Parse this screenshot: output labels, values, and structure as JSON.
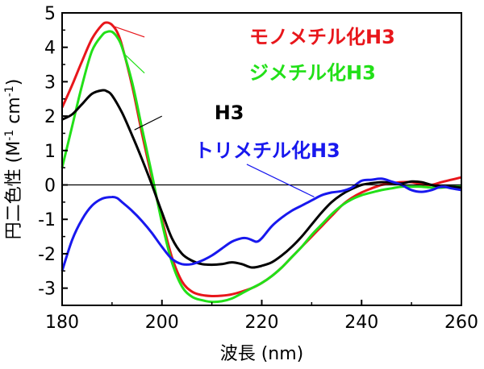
{
  "chart_data": {
    "type": "line",
    "xlabel": "波長 (nm)",
    "ylabel_main": "円二色性 (M",
    "ylabel_sup1": "-1",
    "ylabel_mid": " cm",
    "ylabel_sup2": "-1",
    "ylabel_end": ")",
    "xlim": [
      180,
      260
    ],
    "ylim": [
      -3.5,
      5
    ],
    "xticks": [
      180,
      200,
      220,
      240,
      260
    ],
    "yticks": [
      -3,
      -2,
      -1,
      0,
      1,
      2,
      3,
      4,
      5
    ],
    "zero_line": true,
    "grid": false,
    "series": [
      {
        "name": "モノメチル化H3",
        "color": "#e8161b",
        "x": [
          180,
          182,
          184,
          186,
          188,
          189,
          190,
          191,
          192,
          194,
          196,
          198,
          200,
          202,
          204,
          206,
          208,
          210,
          212,
          214,
          216,
          218,
          220,
          222,
          224,
          226,
          228,
          230,
          232,
          234,
          236,
          238,
          240,
          242,
          244,
          246,
          248,
          250,
          252,
          254,
          256,
          258,
          260
        ],
        "y": [
          2.25,
          2.9,
          3.6,
          4.25,
          4.65,
          4.72,
          4.65,
          4.45,
          4.05,
          2.9,
          1.5,
          0.2,
          -1.0,
          -2.1,
          -2.8,
          -3.1,
          -3.2,
          -3.23,
          -3.22,
          -3.18,
          -3.1,
          -3.0,
          -2.85,
          -2.65,
          -2.4,
          -2.1,
          -1.8,
          -1.5,
          -1.2,
          -0.9,
          -0.6,
          -0.38,
          -0.22,
          -0.1,
          0.0,
          0.05,
          0.08,
          0.08,
          0.02,
          0.0,
          0.08,
          0.15,
          0.22
        ]
      },
      {
        "name": "ジメチル化H3",
        "color": "#22e018",
        "x": [
          180,
          182,
          184,
          186,
          188,
          189,
          190,
          191,
          192,
          194,
          196,
          198,
          200,
          202,
          204,
          206,
          208,
          210,
          212,
          214,
          216,
          218,
          220,
          222,
          224,
          226,
          228,
          230,
          232,
          234,
          236,
          238,
          240,
          242,
          244,
          246,
          248,
          250,
          252,
          254,
          256,
          258,
          260
        ],
        "y": [
          0.5,
          1.7,
          2.9,
          3.9,
          4.35,
          4.45,
          4.45,
          4.3,
          4.0,
          3.0,
          1.65,
          0.3,
          -1.1,
          -2.25,
          -2.95,
          -3.25,
          -3.35,
          -3.4,
          -3.38,
          -3.3,
          -3.15,
          -3.0,
          -2.85,
          -2.65,
          -2.4,
          -2.1,
          -1.8,
          -1.45,
          -1.15,
          -0.85,
          -0.6,
          -0.42,
          -0.3,
          -0.22,
          -0.15,
          -0.1,
          -0.05,
          -0.05,
          -0.05,
          -0.08,
          -0.08,
          -0.05,
          -0.05
        ]
      },
      {
        "name": "H3",
        "color": "#000000",
        "x": [
          180,
          182,
          184,
          186,
          188,
          189,
          190,
          192,
          194,
          196,
          198,
          200,
          202,
          204,
          206,
          208,
          210,
          212,
          214,
          216,
          218,
          220,
          222,
          224,
          226,
          228,
          230,
          232,
          234,
          236,
          238,
          240,
          242,
          244,
          246,
          248,
          250,
          252,
          254,
          256,
          258,
          260
        ],
        "y": [
          1.9,
          2.05,
          2.35,
          2.65,
          2.75,
          2.72,
          2.6,
          2.1,
          1.45,
          0.75,
          0.0,
          -0.8,
          -1.55,
          -2.0,
          -2.2,
          -2.3,
          -2.32,
          -2.3,
          -2.25,
          -2.3,
          -2.4,
          -2.35,
          -2.25,
          -2.05,
          -1.8,
          -1.5,
          -1.15,
          -0.8,
          -0.5,
          -0.28,
          -0.12,
          0.0,
          0.05,
          0.08,
          0.06,
          0.04,
          0.1,
          0.08,
          0.0,
          -0.05,
          -0.05,
          -0.08
        ]
      },
      {
        "name": "トリメチル化H3",
        "color": "#1818ee",
        "x": [
          180,
          182,
          184,
          186,
          188,
          190,
          191,
          192,
          194,
          196,
          198,
          200,
          202,
          204,
          206,
          208,
          210,
          212,
          214,
          216,
          217,
          218,
          219,
          220,
          222,
          224,
          226,
          228,
          230,
          232,
          234,
          236,
          238,
          240,
          242,
          244,
          246,
          248,
          250,
          252,
          254,
          256,
          258,
          260
        ],
        "y": [
          -2.5,
          -1.6,
          -1.0,
          -0.6,
          -0.4,
          -0.35,
          -0.38,
          -0.5,
          -0.75,
          -1.05,
          -1.4,
          -1.8,
          -2.15,
          -2.3,
          -2.3,
          -2.2,
          -2.05,
          -1.85,
          -1.65,
          -1.55,
          -1.55,
          -1.6,
          -1.65,
          -1.55,
          -1.2,
          -0.95,
          -0.75,
          -0.6,
          -0.45,
          -0.3,
          -0.22,
          -0.18,
          -0.08,
          0.12,
          0.15,
          0.18,
          0.1,
          0.0,
          -0.15,
          -0.2,
          -0.15,
          -0.05,
          -0.1,
          -0.15
        ]
      }
    ],
    "labels": [
      {
        "text": "モノメチル化H3",
        "color": "#e8161b",
        "x": 217.5,
        "y": 4.3
      },
      {
        "text": "ジメチル化H3",
        "color": "#22e018",
        "x": 217.5,
        "y": 3.25
      },
      {
        "text": "H3",
        "color": "#000000",
        "x": 210.5,
        "y": 2.1
      },
      {
        "text": "トリメチル化H3",
        "color": "#1818ee",
        "x": 206.5,
        "y": 1.0
      }
    ],
    "leaders": [
      {
        "color": "#e8161b",
        "from": [
          190.5,
          4.6
        ],
        "to": [
          196.5,
          4.3
        ]
      },
      {
        "color": "#22e018",
        "from": [
          192.5,
          3.8
        ],
        "to": [
          196.5,
          3.25
        ]
      },
      {
        "color": "#000000",
        "from": [
          194.5,
          1.6
        ],
        "to": [
          200,
          2.0
        ]
      },
      {
        "color": "#1818ee",
        "from": [
          230.5,
          -0.35
        ],
        "to": [
          217,
          0.6
        ]
      }
    ]
  }
}
